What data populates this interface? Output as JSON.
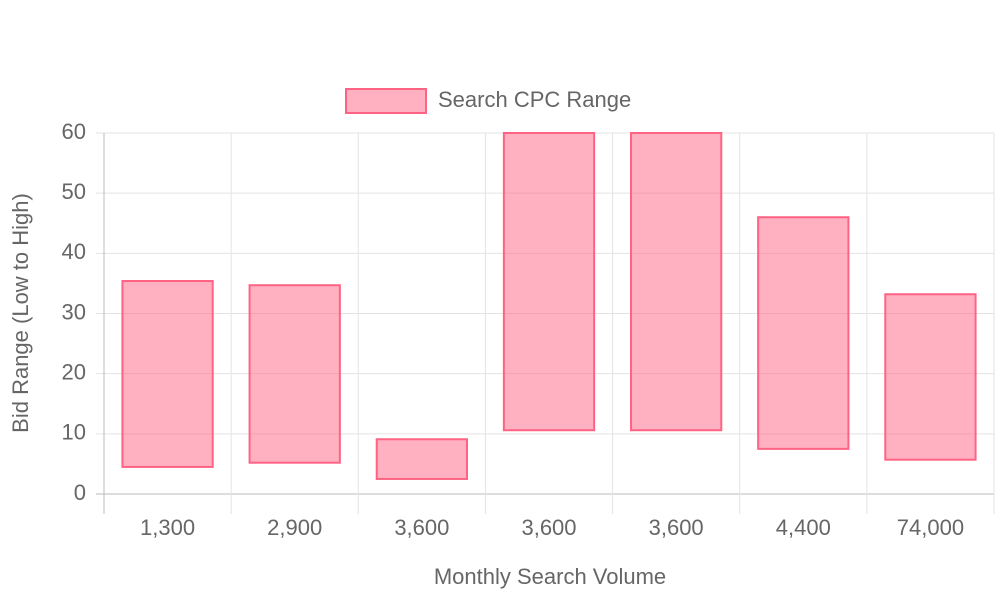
{
  "chart_data": {
    "type": "floating-bar",
    "x_label": "Monthly Search Volume",
    "y_label": "Bid Range (Low to High)",
    "categories": [
      "1,300",
      "2,900",
      "3,600",
      "3,600",
      "3,600",
      "4,400",
      "74,000"
    ],
    "series": [
      {
        "name": "Search CPC Range",
        "color": "#ff6384",
        "values": [
          [
            4.5,
            35.4
          ],
          [
            5.2,
            34.7
          ],
          [
            2.5,
            9.1
          ],
          [
            10.6,
            60
          ],
          [
            10.6,
            60
          ],
          [
            7.5,
            46
          ],
          [
            5.7,
            33.2
          ]
        ]
      }
    ],
    "ylim": [
      0,
      60
    ],
    "yticks": [
      0,
      10,
      20,
      30,
      40,
      50,
      60
    ],
    "grid": true,
    "legend": "top"
  }
}
